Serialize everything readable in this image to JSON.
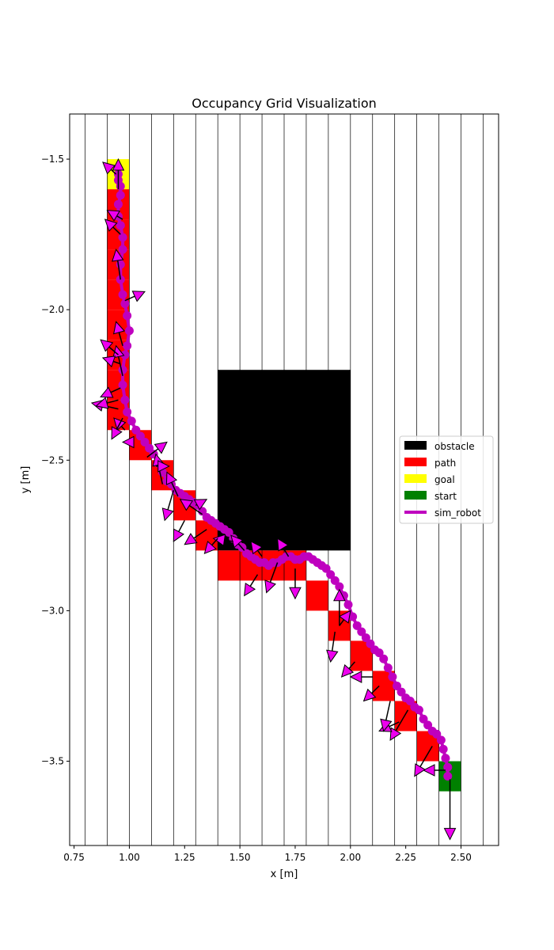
{
  "chart_data": {
    "type": "grid-map",
    "title": "Occupancy Grid Visualization",
    "xlabel": "x [m]",
    "ylabel": "y [m]",
    "xlim": [
      0.73,
      2.67
    ],
    "ylim": [
      -3.78,
      -1.35
    ],
    "xticks": [
      0.75,
      1.0,
      1.25,
      1.5,
      1.75,
      2.0,
      2.25,
      2.5
    ],
    "xtick_labels": [
      "0.75",
      "1.00",
      "1.25",
      "1.50",
      "1.75",
      "2.00",
      "2.25",
      "2.50"
    ],
    "yticks": [
      -1.5,
      -2.0,
      -2.5,
      -3.0,
      -3.5
    ],
    "ytick_labels": [
      "−1.5",
      "−2.0",
      "−2.5",
      "−3.0",
      "−3.5"
    ],
    "grid_cell_size": 0.1,
    "grid_x_range": [
      0.8,
      2.6
    ],
    "grid_y_range": [
      -3.7,
      -1.4
    ],
    "obstacle": {
      "x0": 1.4,
      "x1": 2.0,
      "y0": -2.8,
      "y1": -2.2,
      "color": "#000000"
    },
    "path_cells": [
      [
        0.9,
        -1.7
      ],
      [
        0.9,
        -1.8
      ],
      [
        0.9,
        -1.9
      ],
      [
        0.9,
        -2.0
      ],
      [
        0.9,
        -2.1
      ],
      [
        0.9,
        -2.2
      ],
      [
        0.9,
        -2.3
      ],
      [
        0.9,
        -2.4
      ],
      [
        1.0,
        -2.5
      ],
      [
        1.1,
        -2.6
      ],
      [
        1.2,
        -2.7
      ],
      [
        1.3,
        -2.8
      ],
      [
        1.4,
        -2.9
      ],
      [
        1.5,
        -2.9
      ],
      [
        1.6,
        -2.9
      ],
      [
        1.7,
        -2.9
      ],
      [
        1.8,
        -3.0
      ],
      [
        1.9,
        -3.1
      ],
      [
        2.0,
        -3.2
      ],
      [
        2.1,
        -3.3
      ],
      [
        2.2,
        -3.4
      ],
      [
        2.3,
        -3.5
      ]
    ],
    "goal_cell": [
      0.9,
      -1.6
    ],
    "start_cell": [
      2.4,
      -3.6
    ],
    "colors": {
      "path": "#ff0000",
      "goal": "#ffff00",
      "start": "#008000",
      "robot": "#bf00bf",
      "arrow_face": "#ee00ee"
    },
    "trajectory": {
      "name": "sim_robot",
      "x": [
        2.44,
        2.44,
        2.43,
        2.42,
        2.41,
        2.39,
        2.37,
        2.35,
        2.33,
        2.31,
        2.29,
        2.27,
        2.25,
        2.23,
        2.21,
        2.19,
        2.17,
        2.15,
        2.13,
        2.11,
        2.09,
        2.07,
        2.05,
        2.03,
        2.01,
        1.99,
        1.97,
        1.95,
        1.93,
        1.91,
        1.89,
        1.87,
        1.85,
        1.83,
        1.81,
        1.79,
        1.77,
        1.75,
        1.73,
        1.71,
        1.69,
        1.67,
        1.65,
        1.63,
        1.61,
        1.59,
        1.57,
        1.55,
        1.53,
        1.51,
        1.49,
        1.47,
        1.45,
        1.43,
        1.41,
        1.39,
        1.37,
        1.35,
        1.33,
        1.31,
        1.29,
        1.27,
        1.25,
        1.23,
        1.21,
        1.19,
        1.17,
        1.15,
        1.13,
        1.11,
        1.09,
        1.07,
        1.05,
        1.03,
        1.01,
        0.99,
        0.98,
        0.97,
        0.97,
        0.98,
        0.99,
        1.0,
        0.99,
        0.98,
        0.97,
        0.96,
        0.96,
        0.97,
        0.97,
        0.96,
        0.95,
        0.95,
        0.96,
        0.96,
        0.95,
        0.95
      ],
      "y": [
        -3.55,
        -3.52,
        -3.49,
        -3.46,
        -3.43,
        -3.41,
        -3.4,
        -3.38,
        -3.36,
        -3.33,
        -3.32,
        -3.3,
        -3.29,
        -3.27,
        -3.25,
        -3.22,
        -3.19,
        -3.16,
        -3.14,
        -3.13,
        -3.11,
        -3.09,
        -3.07,
        -3.05,
        -3.02,
        -2.98,
        -2.95,
        -2.92,
        -2.9,
        -2.88,
        -2.86,
        -2.85,
        -2.84,
        -2.83,
        -2.82,
        -2.82,
        -2.83,
        -2.83,
        -2.82,
        -2.82,
        -2.83,
        -2.84,
        -2.84,
        -2.85,
        -2.84,
        -2.84,
        -2.83,
        -2.82,
        -2.81,
        -2.79,
        -2.78,
        -2.76,
        -2.74,
        -2.73,
        -2.72,
        -2.71,
        -2.7,
        -2.69,
        -2.67,
        -2.65,
        -2.64,
        -2.63,
        -2.62,
        -2.61,
        -2.6,
        -2.58,
        -2.57,
        -2.54,
        -2.51,
        -2.48,
        -2.46,
        -2.44,
        -2.42,
        -2.4,
        -2.37,
        -2.34,
        -2.3,
        -2.25,
        -2.2,
        -2.15,
        -2.12,
        -2.07,
        -2.02,
        -1.98,
        -1.95,
        -1.9,
        -1.85,
        -1.8,
        -1.76,
        -1.72,
        -1.69,
        -1.65,
        -1.62,
        -1.59,
        -1.57,
        -1.55
      ]
    },
    "heading_arrows": [
      [
        2.45,
        -3.56,
        0.0,
        -0.2
      ],
      [
        2.43,
        -3.53,
        -0.1,
        0.0
      ],
      [
        2.37,
        -3.45,
        -0.08,
        -0.1
      ],
      [
        2.26,
        -3.33,
        -0.08,
        -0.1
      ],
      [
        2.22,
        -3.37,
        -0.09,
        -0.03
      ],
      [
        2.18,
        -3.3,
        -0.03,
        -0.1
      ],
      [
        2.13,
        -3.25,
        -0.07,
        -0.05
      ],
      [
        2.1,
        -3.22,
        -0.1,
        0.0
      ],
      [
        2.02,
        -3.17,
        -0.06,
        -0.05
      ],
      [
        1.95,
        -3.05,
        0.0,
        0.12
      ],
      [
        1.95,
        -3.05,
        0.05,
        0.05
      ],
      [
        1.93,
        -3.07,
        -0.02,
        -0.1
      ],
      [
        1.75,
        -2.86,
        0.0,
        -0.1
      ],
      [
        1.72,
        -2.82,
        -0.05,
        0.06
      ],
      [
        1.67,
        -2.84,
        -0.05,
        -0.1
      ],
      [
        1.6,
        -2.82,
        -0.05,
        0.05
      ],
      [
        1.58,
        -2.88,
        -0.06,
        -0.07
      ],
      [
        1.52,
        -2.8,
        -0.06,
        0.05
      ],
      [
        1.47,
        -2.77,
        -0.09,
        0.01
      ],
      [
        1.4,
        -2.76,
        -0.06,
        -0.05
      ],
      [
        1.35,
        -2.73,
        -0.1,
        -0.05
      ],
      [
        1.33,
        -2.68,
        -0.1,
        0.05
      ],
      [
        1.3,
        -2.65,
        0.05,
        0.02
      ],
      [
        1.25,
        -2.7,
        -0.05,
        -0.07
      ],
      [
        1.22,
        -2.62,
        -0.05,
        0.08
      ],
      [
        1.2,
        -2.6,
        -0.04,
        -0.1
      ],
      [
        1.15,
        -2.58,
        -0.03,
        0.1
      ],
      [
        1.12,
        -2.52,
        0.06,
        0.0
      ],
      [
        1.08,
        -2.49,
        0.09,
        0.05
      ],
      [
        1.02,
        -2.44,
        -0.05,
        0.0
      ],
      [
        0.98,
        -2.4,
        -0.05,
        0.04
      ],
      [
        0.97,
        -2.36,
        -0.05,
        -0.07
      ],
      [
        0.95,
        -2.33,
        -0.12,
        0.02
      ],
      [
        0.95,
        -2.3,
        -0.1,
        -0.02
      ],
      [
        0.96,
        -2.26,
        -0.09,
        -0.03
      ],
      [
        0.97,
        -2.22,
        -0.03,
        0.1
      ],
      [
        0.96,
        -2.18,
        -0.08,
        0.02
      ],
      [
        0.95,
        -2.15,
        -0.08,
        0.05
      ],
      [
        0.97,
        -2.12,
        -0.03,
        0.08
      ],
      [
        0.98,
        -1.97,
        0.09,
        0.03
      ],
      [
        0.96,
        -1.9,
        -0.02,
        0.1
      ],
      [
        0.96,
        -1.75,
        -0.07,
        0.05
      ],
      [
        0.97,
        -1.7,
        -0.07,
        0.03
      ],
      [
        0.95,
        -1.6,
        0.0,
        0.1
      ],
      [
        0.94,
        -1.55,
        -0.06,
        0.04
      ]
    ],
    "legend": {
      "placement": "center-right",
      "entries": [
        {
          "label": "obstacle",
          "color": "#000000",
          "kind": "patch"
        },
        {
          "label": "path",
          "color": "#ff0000",
          "kind": "patch"
        },
        {
          "label": "goal",
          "color": "#ffff00",
          "kind": "patch"
        },
        {
          "label": "start",
          "color": "#008000",
          "kind": "patch"
        },
        {
          "label": "sim_robot",
          "color": "#bf00bf",
          "kind": "line"
        }
      ]
    }
  }
}
